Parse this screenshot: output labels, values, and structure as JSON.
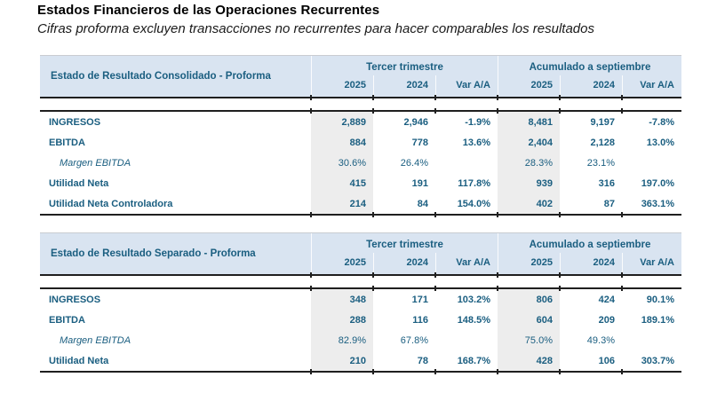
{
  "page": {
    "title": "Estados Financieros de las Operaciones Recurrentes",
    "subtitle": "Cifras proforma excluyen transacciones no recurrentes para hacer comparables los resultados"
  },
  "colors": {
    "header_bg": "#D9E4F1",
    "text_blue": "#1A5E80",
    "shaded_column": "#EDEDED",
    "rule_dark": "#1F1F1F"
  },
  "tables": [
    {
      "label_header": "Estado de Resultado Consolidado - Proforma",
      "group_headers": [
        "Tercer trimestre",
        "Acumulado a septiembre"
      ],
      "col_headers": [
        "2025",
        "2024",
        "Var A/A",
        "2025",
        "2024",
        "Var A/A"
      ],
      "rows": [
        {
          "label": "INGRESOS",
          "cells": [
            "2,889",
            "2,946",
            "-1.9%",
            "8,481",
            "9,197",
            "-7.8%"
          ]
        },
        {
          "label": "EBITDA",
          "cells": [
            "884",
            "778",
            "13.6%",
            "2,404",
            "2,128",
            "13.0%"
          ]
        },
        {
          "label": "Margen EBITDA",
          "cells": [
            "30.6%",
            "26.4%",
            "",
            "28.3%",
            "23.1%",
            ""
          ]
        },
        {
          "label": "Utilidad Neta",
          "cells": [
            "415",
            "191",
            "117.8%",
            "939",
            "316",
            "197.0%"
          ]
        },
        {
          "label": "Utilidad Neta Controladora",
          "cells": [
            "214",
            "84",
            "154.0%",
            "402",
            "87",
            "363.1%"
          ]
        }
      ]
    },
    {
      "label_header": "Estado de Resultado Separado - Proforma",
      "group_headers": [
        "Tercer trimestre",
        "Acumulado a septiembre"
      ],
      "col_headers": [
        "2025",
        "2024",
        "Var A/A",
        "2025",
        "2024",
        "Var A/A"
      ],
      "rows": [
        {
          "label": "INGRESOS",
          "cells": [
            "348",
            "171",
            "103.2%",
            "806",
            "424",
            "90.1%"
          ]
        },
        {
          "label": "EBITDA",
          "cells": [
            "288",
            "116",
            "148.5%",
            "604",
            "209",
            "189.1%"
          ]
        },
        {
          "label": "Margen EBITDA",
          "cells": [
            "82.9%",
            "67.8%",
            "",
            "75.0%",
            "49.3%",
            ""
          ]
        },
        {
          "label": "Utilidad Neta",
          "cells": [
            "210",
            "78",
            "168.7%",
            "428",
            "106",
            "303.7%"
          ]
        }
      ]
    }
  ]
}
